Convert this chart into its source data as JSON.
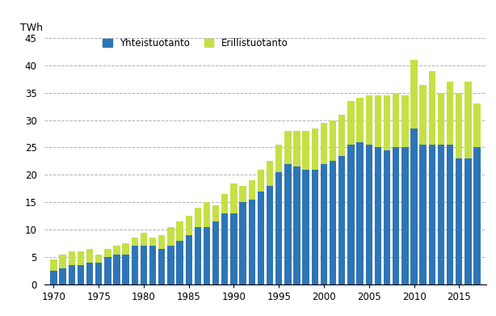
{
  "years": [
    1970,
    1971,
    1972,
    1973,
    1974,
    1975,
    1976,
    1977,
    1978,
    1979,
    1980,
    1981,
    1982,
    1983,
    1984,
    1985,
    1986,
    1987,
    1988,
    1989,
    1990,
    1991,
    1992,
    1993,
    1994,
    1995,
    1996,
    1997,
    1998,
    1999,
    2000,
    2001,
    2002,
    2003,
    2004,
    2005,
    2006,
    2007,
    2008,
    2009,
    2010,
    2011,
    2012,
    2013,
    2014,
    2015,
    2016,
    2017
  ],
  "yhteistuotanto": [
    2.5,
    3.0,
    3.5,
    3.5,
    4.0,
    4.0,
    5.0,
    5.5,
    5.5,
    7.0,
    7.0,
    7.0,
    6.5,
    7.0,
    8.0,
    9.0,
    10.5,
    10.5,
    11.5,
    13.0,
    13.0,
    15.0,
    15.5,
    17.0,
    18.0,
    20.5,
    22.0,
    21.5,
    21.0,
    21.0,
    22.0,
    22.5,
    23.5,
    25.5,
    26.0,
    25.5,
    25.0,
    24.5,
    25.0,
    25.0,
    28.5,
    25.5,
    25.5,
    25.5,
    25.5,
    23.0,
    23.0,
    25.0
  ],
  "erillistuotanto": [
    2.0,
    2.5,
    2.5,
    2.5,
    2.5,
    1.5,
    1.5,
    1.5,
    2.0,
    1.5,
    2.5,
    1.5,
    2.5,
    3.5,
    3.5,
    3.5,
    3.5,
    4.5,
    3.0,
    3.5,
    5.5,
    3.0,
    3.5,
    4.0,
    4.5,
    5.0,
    6.0,
    6.5,
    7.0,
    7.5,
    7.5,
    7.5,
    7.5,
    8.0,
    8.0,
    9.0,
    9.5,
    10.0,
    10.0,
    9.5,
    12.5,
    11.0,
    13.5,
    9.5,
    11.5,
    12.0,
    14.0,
    8.0
  ],
  "bar_color_1": "#2e75b6",
  "bar_color_2": "#c5e046",
  "ylabel": "TWh",
  "ylim": [
    0,
    45
  ],
  "yticks": [
    0,
    5,
    10,
    15,
    20,
    25,
    30,
    35,
    40,
    45
  ],
  "xticks": [
    1970,
    1975,
    1980,
    1985,
    1990,
    1995,
    2000,
    2005,
    2010,
    2015
  ],
  "legend_label_1": "Yhteistuotanto",
  "legend_label_2": "Erillistuotanto",
  "background_color": "#ffffff",
  "grid_color": "#b0b0b0",
  "grid_linestyle": "--"
}
